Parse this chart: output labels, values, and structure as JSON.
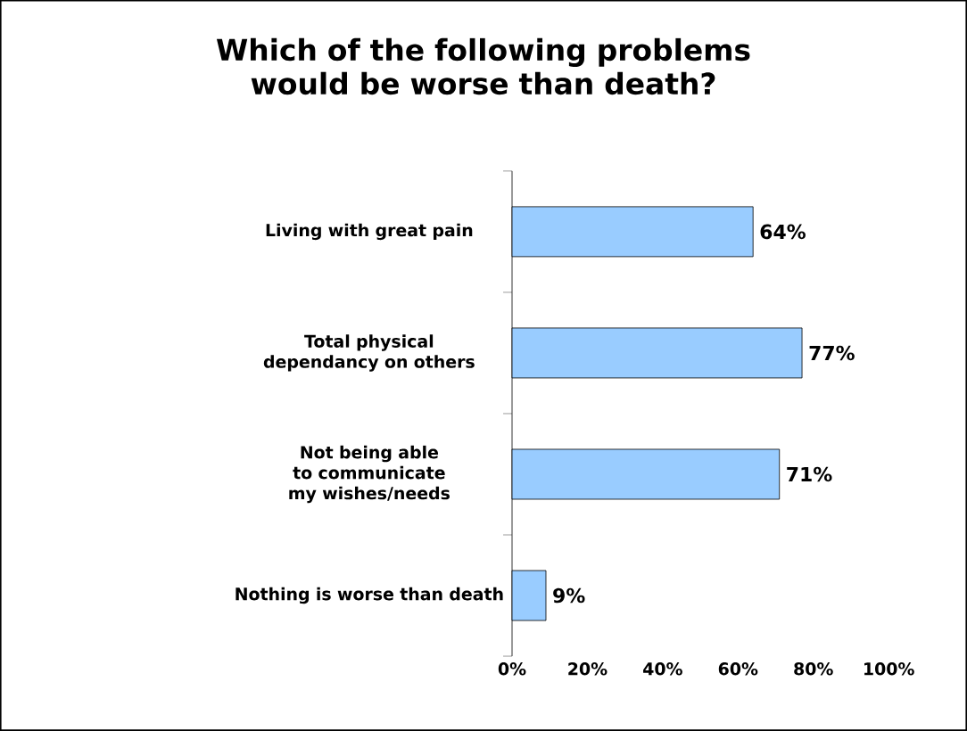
{
  "chart_data": {
    "type": "bar",
    "orientation": "horizontal",
    "title": "Which of the following problems would be worse than death?",
    "categories": [
      "Living with great pain",
      "Total physical dependancy on others",
      "Not being able to communicate my wishes/needs",
      "Nothing is worse than death"
    ],
    "values": [
      64,
      77,
      71,
      9
    ],
    "value_labels": [
      "64%",
      "77%",
      "71%",
      "9%"
    ],
    "color": "#99ccff",
    "xlim": [
      0,
      100
    ],
    "xticks": [
      {
        "value": 0,
        "label": "0%"
      },
      {
        "value": 20,
        "label": "20%"
      },
      {
        "value": 40,
        "label": "40%"
      },
      {
        "value": 60,
        "label": "60%"
      },
      {
        "value": 80,
        "label": "80%"
      },
      {
        "value": 100,
        "label": "100%"
      }
    ]
  }
}
